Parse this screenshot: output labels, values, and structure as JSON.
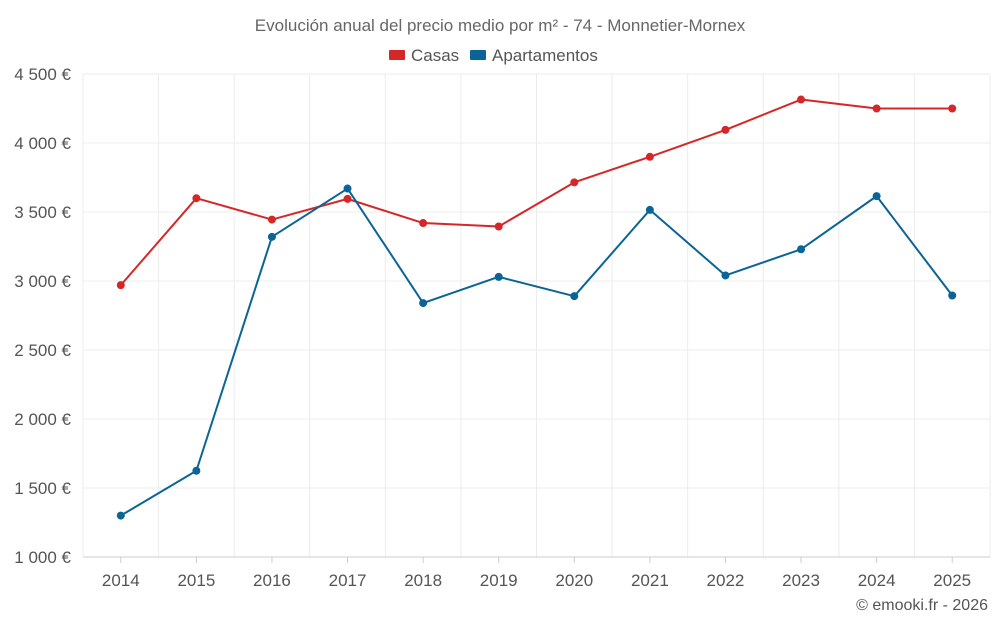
{
  "chart_data": {
    "type": "line",
    "title": "Evolución anual del precio medio por m² - 74 - Monnetier-Mornex",
    "categories": [
      "2014",
      "2015",
      "2016",
      "2017",
      "2018",
      "2019",
      "2020",
      "2021",
      "2022",
      "2023",
      "2024",
      "2025"
    ],
    "series": [
      {
        "name": "Casas",
        "color": "#d62728",
        "values": [
          2970,
          3600,
          3445,
          3595,
          3420,
          3395,
          3715,
          3900,
          4095,
          4315,
          4250,
          4250
        ]
      },
      {
        "name": "Apartamentos",
        "color": "#0b6496",
        "values": [
          1300,
          1625,
          3320,
          3670,
          2840,
          3030,
          2890,
          3515,
          3040,
          3230,
          3615,
          2895
        ]
      }
    ],
    "ylim": [
      1000,
      4500
    ],
    "yticks": [
      1000,
      1500,
      2000,
      2500,
      3000,
      3500,
      4000,
      4500
    ],
    "ytick_labels": [
      "1 000 €",
      "1 500 €",
      "2 000 €",
      "2 500 €",
      "3 000 €",
      "3 500 €",
      "4 000 €",
      "4 500 €"
    ],
    "grid": true,
    "legend_position": "top-center",
    "xlabel": "",
    "ylabel": ""
  },
  "footer": {
    "credit": "© emooki.fr - 2026"
  },
  "colors": {
    "grid": "#ececec",
    "axis": "#cccccc"
  }
}
